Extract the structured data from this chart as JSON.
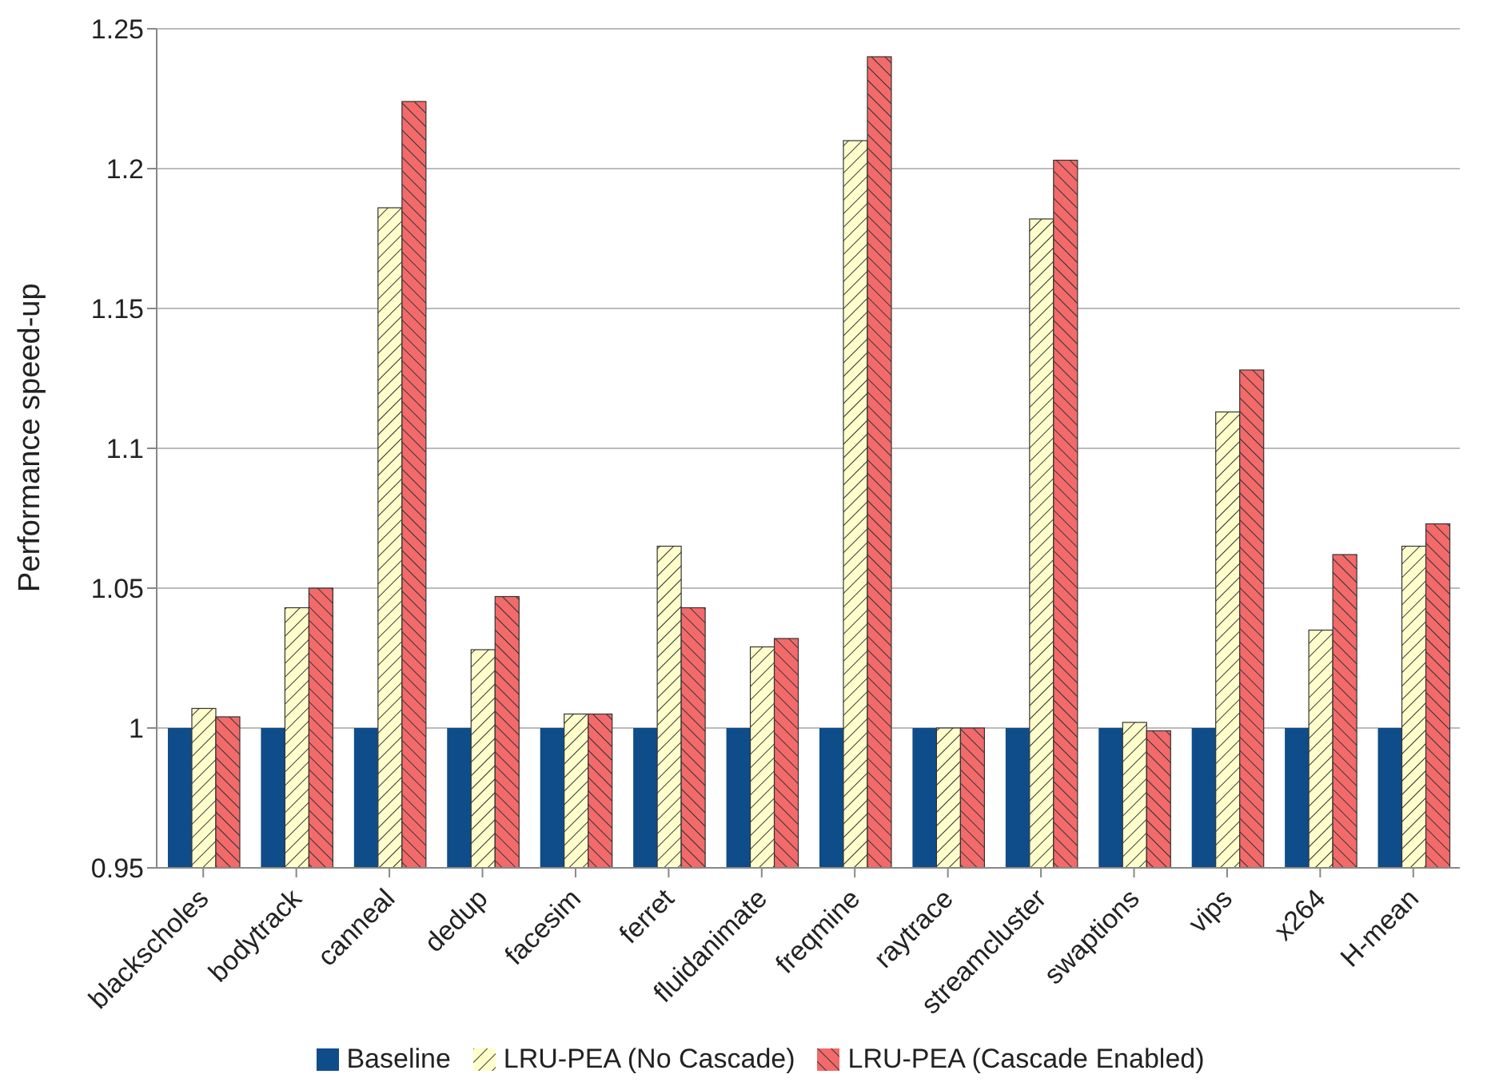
{
  "chart_data": {
    "type": "bar",
    "ylabel": "Performance speed-up",
    "categories": [
      "blackscholes",
      "bodytrack",
      "canneal",
      "dedup",
      "facesim",
      "ferret",
      "fluidanimate",
      "freqmine",
      "raytrace",
      "streamcluster",
      "swaptions",
      "vips",
      "x264",
      "H-mean"
    ],
    "series": [
      {
        "name": "Baseline",
        "color": "#0f4c8a",
        "values": [
          1,
          1,
          1,
          1,
          1,
          1,
          1,
          1,
          1,
          1,
          1,
          1,
          1,
          1
        ]
      },
      {
        "name": "LRU-PEA (No Cascade)",
        "color": "#ffffcc",
        "values": [
          1.007,
          1.043,
          1.186,
          1.028,
          1.005,
          1.065,
          1.029,
          1.21,
          1.0,
          1.182,
          1.002,
          1.113,
          1.035,
          1.065
        ]
      },
      {
        "name": "LRU-PEA (Cascade Enabled)",
        "color": "#f26a6a",
        "values": [
          1.004,
          1.05,
          1.224,
          1.047,
          1.005,
          1.043,
          1.032,
          1.24,
          1.0,
          1.203,
          0.999,
          1.128,
          1.062,
          1.073
        ]
      }
    ],
    "ylim": [
      0.95,
      1.25
    ],
    "yticks": [
      {
        "value": 0.95,
        "label": "0.95"
      },
      {
        "value": 1,
        "label": "1"
      },
      {
        "value": 1.05,
        "label": "1.05"
      },
      {
        "value": 1.1,
        "label": "1.1"
      },
      {
        "value": 1.15,
        "label": "1.15"
      },
      {
        "value": 1.2,
        "label": "1.2"
      },
      {
        "value": 1.25,
        "label": "1.25"
      }
    ],
    "grid": "y",
    "legend": "bottom"
  }
}
